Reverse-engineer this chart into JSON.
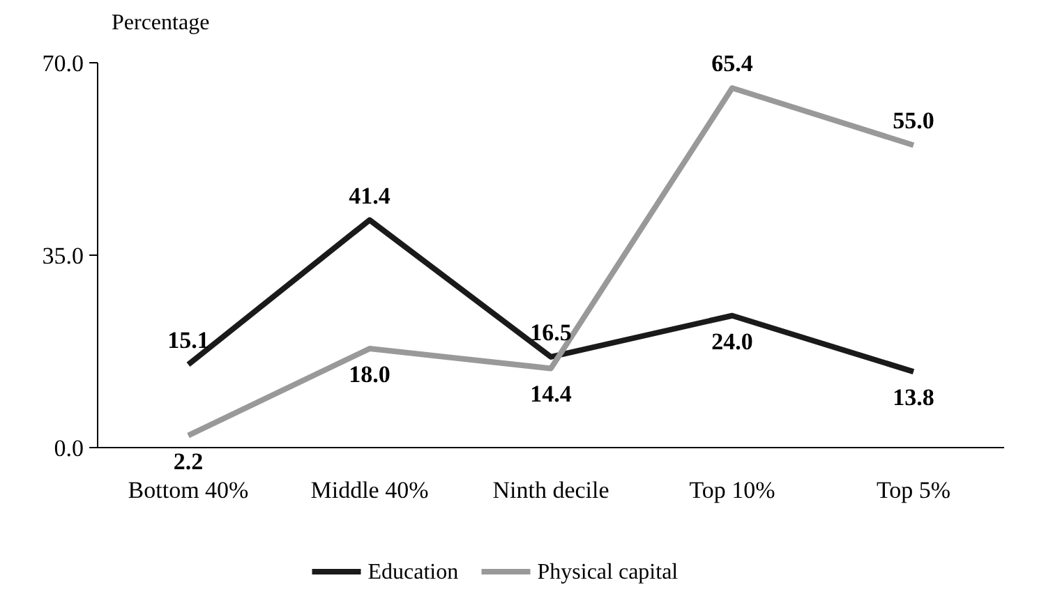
{
  "chart_data": {
    "type": "line",
    "ylabel": "Percentage",
    "categories": [
      "Bottom 40%",
      "Middle 40%",
      "Ninth decile",
      "Top 10%",
      "Top 5%"
    ],
    "series": [
      {
        "name": "Education",
        "color": "#1a1a1a",
        "values": [
          15.1,
          41.4,
          16.5,
          24.0,
          13.8
        ],
        "value_labels": [
          "15.1",
          "41.4",
          "16.5",
          "24.0",
          "13.8"
        ]
      },
      {
        "name": "Physical capital",
        "color": "#999999",
        "values": [
          2.2,
          18.0,
          14.4,
          65.4,
          55.0
        ],
        "value_labels": [
          "2.2",
          "18.0",
          "14.4",
          "65.4",
          "55.0"
        ]
      }
    ],
    "ylim": [
      0,
      70
    ],
    "yticks": [
      {
        "value": 0,
        "label": "0.0"
      },
      {
        "value": 35,
        "label": "35.0"
      },
      {
        "value": 70,
        "label": "70.0"
      }
    ],
    "legend": "bottom",
    "line_style": "solid"
  }
}
